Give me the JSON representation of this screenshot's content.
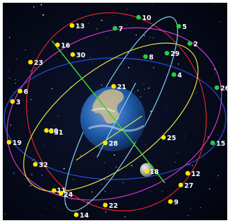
{
  "colors": {
    "space": "#050a1c",
    "frame": "#ffffff",
    "satellite_yellow": "#ffe600",
    "satellite_green": "#1fd23a",
    "axis_line": "#3bd12a",
    "orbit_red": "#e02525",
    "orbit_magenta": "#d23acb",
    "orbit_yellow": "#e6e43a",
    "orbit_blue": "#2a4fe0",
    "orbit_cyan": "#7fd6ee",
    "earth_ocean": "#1f5aa8",
    "earth_land": "#cdbb8e",
    "moon": "#d9d9d9"
  },
  "satellites": [
    {
      "label": "10",
      "color": "green"
    },
    {
      "label": "7",
      "color": "green"
    },
    {
      "label": "5",
      "color": "green"
    },
    {
      "label": "2",
      "color": "green"
    },
    {
      "label": "29",
      "color": "green"
    },
    {
      "label": "8",
      "color": "green"
    },
    {
      "label": "4",
      "color": "green"
    },
    {
      "label": "26",
      "color": "green"
    },
    {
      "label": "15",
      "color": "green"
    },
    {
      "label": "13",
      "color": "yellow"
    },
    {
      "label": "16",
      "color": "yellow"
    },
    {
      "label": "30",
      "color": "yellow"
    },
    {
      "label": "23",
      "color": "yellow"
    },
    {
      "label": "6",
      "color": "yellow"
    },
    {
      "label": "3",
      "color": "yellow"
    },
    {
      "label": "21",
      "color": "yellow"
    },
    {
      "label": "20",
      "color": "yellow"
    },
    {
      "label": "31",
      "color": "yellow"
    },
    {
      "label": "19",
      "color": "yellow"
    },
    {
      "label": "28",
      "color": "yellow"
    },
    {
      "label": "25",
      "color": "yellow"
    },
    {
      "label": "32",
      "color": "yellow"
    },
    {
      "label": "18",
      "color": "yellow"
    },
    {
      "label": "12",
      "color": "yellow"
    },
    {
      "label": "27",
      "color": "yellow"
    },
    {
      "label": "11",
      "color": "yellow"
    },
    {
      "label": "24",
      "color": "yellow"
    },
    {
      "label": "22",
      "color": "yellow"
    },
    {
      "label": "9",
      "color": "yellow"
    },
    {
      "label": "14",
      "color": "yellow"
    }
  ]
}
